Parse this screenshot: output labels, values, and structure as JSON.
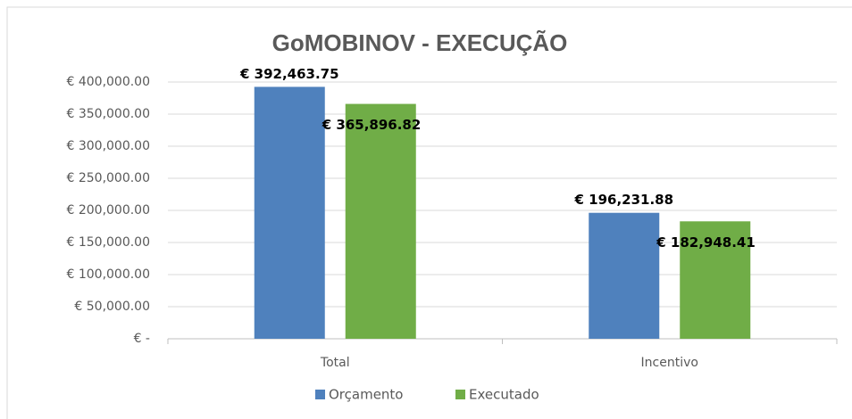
{
  "chart_data": {
    "type": "bar",
    "title": "GoMOBINOV - EXECUÇÃO",
    "categories": [
      "Total",
      "Incentivo"
    ],
    "series": [
      {
        "name": "Orçamento",
        "color": "#4f81bd",
        "values": [
          392463.75,
          196231.88
        ],
        "value_labels": [
          "€ 392,463.75",
          "€ 196,231.88"
        ]
      },
      {
        "name": "Executado",
        "color": "#70ad47",
        "values": [
          365896.82,
          182948.41
        ],
        "value_labels": [
          "€ 365,896.82",
          "€ 182,948.41"
        ]
      }
    ],
    "ylim": [
      0,
      400000
    ],
    "yticks": [
      {
        "value": 0,
        "label": "€ -"
      },
      {
        "value": 50000,
        "label": "€ 50,000.00"
      },
      {
        "value": 100000,
        "label": "€ 100,000.00"
      },
      {
        "value": 150000,
        "label": "€ 150,000.00"
      },
      {
        "value": 200000,
        "label": "€ 200,000.00"
      },
      {
        "value": 250000,
        "label": "€ 250,000.00"
      },
      {
        "value": 300000,
        "label": "€ 300,000.00"
      },
      {
        "value": 350000,
        "label": "€ 350,000.00"
      },
      {
        "value": 400000,
        "label": "€ 400,000.00"
      }
    ],
    "grid": true,
    "legend": "bottom"
  }
}
